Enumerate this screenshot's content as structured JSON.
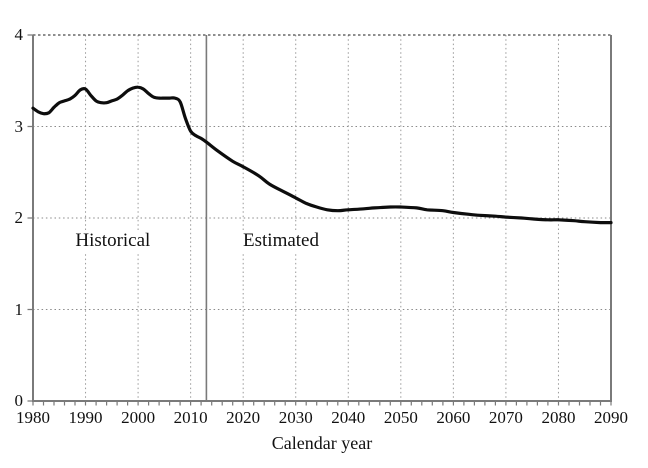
{
  "colors": {
    "line": "#0d0d0d",
    "axis": "#7a7a7a",
    "divider": "#7a7a7a",
    "h_grid": "#8a8a8a",
    "v_grid": "#9a9a9a",
    "top_border": "#4a4a4a",
    "tick": "#7a7a7a",
    "text": "#111111",
    "background": "#ffffff"
  },
  "chart_data": {
    "type": "line",
    "title": "",
    "xlabel": "Calendar year",
    "ylabel": "",
    "xlim": [
      1980,
      2090
    ],
    "ylim": [
      0,
      4
    ],
    "x_tick_labels": [
      1980,
      1990,
      2000,
      2010,
      2020,
      2030,
      2040,
      2050,
      2060,
      2070,
      2080,
      2090
    ],
    "y_tick_labels": [
      0,
      1,
      2,
      3,
      4
    ],
    "minor_x_tick_step": 2,
    "grid": "dotted",
    "legend": "none",
    "divider": {
      "year": 2013,
      "style": "solid vertical line separating historical from estimated"
    },
    "annotations": [
      {
        "text": "Historical",
        "year": 1995.2,
        "value": 1.75
      },
      {
        "text": "Estimated",
        "year": 2027.2,
        "value": 1.75
      }
    ],
    "series": [
      {
        "label": "",
        "points": [
          [
            1980,
            3.2
          ],
          [
            1981,
            3.16
          ],
          [
            1982,
            3.14
          ],
          [
            1983,
            3.15
          ],
          [
            1984,
            3.21
          ],
          [
            1985,
            3.26
          ],
          [
            1986,
            3.28
          ],
          [
            1987,
            3.3
          ],
          [
            1988,
            3.34
          ],
          [
            1989,
            3.4
          ],
          [
            1990,
            3.41
          ],
          [
            1991,
            3.34
          ],
          [
            1992,
            3.28
          ],
          [
            1993,
            3.26
          ],
          [
            1994,
            3.26
          ],
          [
            1995,
            3.28
          ],
          [
            1996,
            3.3
          ],
          [
            1997,
            3.34
          ],
          [
            1998,
            3.39
          ],
          [
            1999,
            3.42
          ],
          [
            2000,
            3.43
          ],
          [
            2001,
            3.41
          ],
          [
            2002,
            3.36
          ],
          [
            2003,
            3.32
          ],
          [
            2004,
            3.31
          ],
          [
            2005,
            3.31
          ],
          [
            2006,
            3.31
          ],
          [
            2007,
            3.31
          ],
          [
            2008,
            3.27
          ],
          [
            2009,
            3.09
          ],
          [
            2010,
            2.95
          ],
          [
            2011,
            2.9
          ],
          [
            2012,
            2.87
          ],
          [
            2013,
            2.83
          ],
          [
            2015,
            2.74
          ],
          [
            2018,
            2.62
          ],
          [
            2020,
            2.56
          ],
          [
            2023,
            2.46
          ],
          [
            2025,
            2.37
          ],
          [
            2028,
            2.28
          ],
          [
            2030,
            2.22
          ],
          [
            2032,
            2.16
          ],
          [
            2034,
            2.12
          ],
          [
            2036,
            2.09
          ],
          [
            2038,
            2.08
          ],
          [
            2040,
            2.09
          ],
          [
            2043,
            2.1
          ],
          [
            2045,
            2.11
          ],
          [
            2048,
            2.12
          ],
          [
            2050,
            2.12
          ],
          [
            2053,
            2.11
          ],
          [
            2055,
            2.09
          ],
          [
            2058,
            2.08
          ],
          [
            2060,
            2.06
          ],
          [
            2063,
            2.04
          ],
          [
            2065,
            2.03
          ],
          [
            2068,
            2.02
          ],
          [
            2070,
            2.01
          ],
          [
            2073,
            2.0
          ],
          [
            2075,
            1.99
          ],
          [
            2078,
            1.98
          ],
          [
            2080,
            1.98
          ],
          [
            2083,
            1.97
          ],
          [
            2085,
            1.96
          ],
          [
            2088,
            1.95
          ],
          [
            2090,
            1.95
          ]
        ]
      }
    ]
  }
}
